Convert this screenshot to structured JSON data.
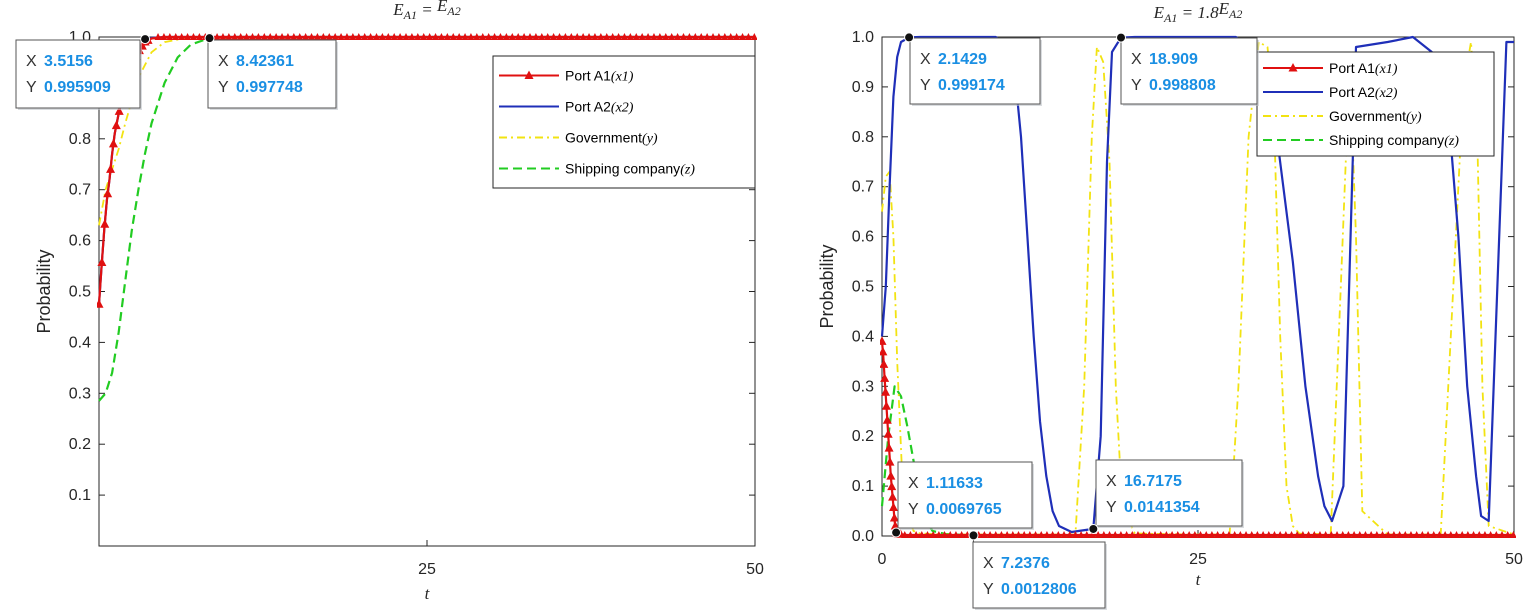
{
  "chart_data": [
    {
      "type": "line",
      "title": "E_A1 = E_A2",
      "title_parts": {
        "lhs": "E",
        "lhs_sub": "A1",
        "eq": " = ",
        "rhs": "E",
        "rhs_sub": "A2"
      },
      "xlabel": "t",
      "ylabel": "Probability",
      "xlim": [
        0,
        50
      ],
      "ylim": [
        0,
        1.0
      ],
      "xticks": [
        25,
        50
      ],
      "xtick_labels": [
        "25",
        "50"
      ],
      "yticks": [
        0.1,
        0.2,
        0.3,
        0.4,
        0.5,
        0.6,
        0.7,
        0.8,
        1.0
      ],
      "ytick_labels": [
        "0.1",
        "0.2",
        "0.3",
        "0.4",
        "0.5",
        "0.6",
        "0.7",
        "0.8",
        "1.0"
      ],
      "legend_position": "top-right",
      "series": [
        {
          "name": "Port A1",
          "name_var": "x1",
          "color": "#e01010",
          "style": "solid-triangle",
          "x": [
            0,
            0.2,
            0.4,
            0.6,
            0.8,
            1.0,
            1.2,
            1.5,
            2.0,
            2.5,
            3.0,
            3.5,
            4,
            5,
            8,
            12,
            20,
            30,
            40,
            50
          ],
          "y": [
            0.475,
            0.55,
            0.62,
            0.68,
            0.72,
            0.77,
            0.81,
            0.85,
            0.9,
            0.94,
            0.97,
            0.99,
            0.997,
            1.0,
            1.0,
            1.0,
            1.0,
            1.0,
            1.0,
            1.0
          ]
        },
        {
          "name": "Port A2",
          "name_var": "x2",
          "color": "#1f2fb8",
          "style": "solid",
          "x": [
            0,
            0.2,
            0.4,
            0.6,
            0.8,
            1.0,
            1.2,
            1.5,
            2.0,
            2.5,
            3.0,
            3.5156,
            4,
            5,
            8,
            20,
            50
          ],
          "y": [
            0.475,
            0.55,
            0.62,
            0.68,
            0.72,
            0.77,
            0.81,
            0.85,
            0.9,
            0.94,
            0.97,
            0.995909,
            0.998,
            1.0,
            1.0,
            1.0,
            1.0
          ]
        },
        {
          "name": "Government",
          "name_var": "y",
          "color": "#f2e311",
          "style": "dashdot",
          "x": [
            0,
            0.5,
            1.0,
            1.5,
            2.0,
            3.0,
            4.0,
            5.0,
            7,
            10,
            50
          ],
          "y": [
            0.63,
            0.7,
            0.74,
            0.78,
            0.83,
            0.92,
            0.97,
            0.99,
            1.0,
            1.0,
            1.0
          ]
        },
        {
          "name": "Shipping company",
          "name_var": "z",
          "color": "#22cc22",
          "style": "dashed",
          "x": [
            0,
            0.5,
            1.0,
            1.5,
            2.0,
            2.5,
            3.0,
            3.5,
            4.0,
            5.0,
            6.0,
            7.0,
            8.42361,
            10,
            15,
            20,
            30,
            50
          ],
          "y": [
            0.285,
            0.3,
            0.34,
            0.42,
            0.52,
            0.62,
            0.7,
            0.77,
            0.83,
            0.91,
            0.96,
            0.985,
            0.997748,
            1.0,
            1.0,
            1.0,
            1.0,
            1.0
          ]
        }
      ],
      "datatips": [
        {
          "x": 3.5156,
          "y": 0.995909,
          "x_label": "X",
          "y_label": "Y",
          "x_text": "3.5156",
          "y_text": "0.995909",
          "box_side": "left"
        },
        {
          "x": 8.42361,
          "y": 0.997748,
          "x_label": "X",
          "y_label": "Y",
          "x_text": "8.42361",
          "y_text": "0.997748",
          "box_side": "right"
        }
      ]
    },
    {
      "type": "line",
      "title": "E_A1 = 1.8E_A2",
      "title_parts": {
        "lhs": "E",
        "lhs_sub": "A1",
        "eq": " = 1.8",
        "rhs": "E",
        "rhs_sub": "A2"
      },
      "xlabel": "t",
      "ylabel": "Probability",
      "xlim": [
        0,
        50
      ],
      "ylim": [
        0,
        1.0
      ],
      "xticks": [
        0,
        25,
        50
      ],
      "xtick_labels": [
        "0",
        "25",
        "50"
      ],
      "yticks": [
        0.0,
        0.1,
        0.2,
        0.3,
        0.4,
        0.5,
        0.6,
        0.7,
        0.8,
        0.9,
        1.0
      ],
      "ytick_labels": [
        "0.0",
        "0.1",
        "0.2",
        "0.3",
        "0.4",
        "0.5",
        "0.6",
        "0.7",
        "0.8",
        "0.9",
        "1.0"
      ],
      "legend_position": "top-right",
      "series": [
        {
          "name": "Port A1",
          "name_var": "x1",
          "color": "#e01010",
          "style": "solid-triangle",
          "x": [
            0,
            0.1,
            0.2,
            0.3,
            0.4,
            0.5,
            0.6,
            0.7,
            0.8,
            0.9,
            1.0,
            1.11633,
            1.3,
            1.6,
            2.0,
            3,
            5,
            10,
            20,
            30,
            40,
            50
          ],
          "y": [
            0.39,
            0.36,
            0.32,
            0.28,
            0.24,
            0.2,
            0.16,
            0.12,
            0.09,
            0.06,
            0.03,
            0.0069765,
            0.004,
            0.003,
            0.002,
            0.002,
            0.002,
            0.002,
            0.002,
            0.002,
            0.002,
            0.002
          ]
        },
        {
          "name": "Port A2",
          "name_var": "x2",
          "color": "#1f2fb8",
          "style": "solid",
          "x": [
            0,
            0.3,
            0.6,
            0.9,
            1.2,
            1.5,
            2.1429,
            3,
            6,
            9,
            10,
            10.5,
            11,
            11.5,
            12,
            12.5,
            13,
            13.5,
            14,
            15,
            16.7175,
            17.3,
            17.8,
            18.2,
            18.909,
            20,
            25,
            28,
            29.5,
            31,
            32.5,
            33.5,
            34.5,
            35,
            35.6,
            36.5,
            37.5,
            40,
            42,
            43.5,
            44.8,
            45.6,
            46.3,
            47,
            47.4,
            48,
            49.4,
            50
          ],
          "y": [
            0.4,
            0.5,
            0.7,
            0.88,
            0.96,
            0.99,
            0.999174,
            1.0,
            1.0,
            1.0,
            0.98,
            0.93,
            0.8,
            0.6,
            0.4,
            0.23,
            0.12,
            0.05,
            0.02,
            0.008,
            0.0141354,
            0.2,
            0.75,
            0.97,
            0.998808,
            1.0,
            1.0,
            1.0,
            0.97,
            0.85,
            0.55,
            0.3,
            0.12,
            0.06,
            0.03,
            0.1,
            0.98,
            0.99,
            1.0,
            0.97,
            0.85,
            0.6,
            0.3,
            0.12,
            0.04,
            0.03,
            0.99,
            0.99
          ]
        },
        {
          "name": "Government",
          "name_var": "y",
          "color": "#f2e311",
          "style": "dashdot",
          "x": [
            0,
            0.3,
            0.6,
            0.9,
            1.2,
            1.6,
            2.0,
            2.5,
            3,
            5,
            10,
            15.3,
            16,
            16.6,
            17,
            17.5,
            18,
            18.5,
            19,
            20,
            24,
            27.5,
            28.2,
            29,
            29.8,
            30.5,
            31,
            31.5,
            32,
            32.5,
            33,
            35.5,
            36.3,
            37,
            37.5,
            38,
            40,
            44.2,
            45,
            46,
            46.6,
            47.1,
            47.5,
            48,
            50
          ],
          "y": [
            0.65,
            0.72,
            0.73,
            0.6,
            0.35,
            0.12,
            0.04,
            0.01,
            0.005,
            0.003,
            0.003,
            0.003,
            0.3,
            0.8,
            0.98,
            0.95,
            0.75,
            0.3,
            0.06,
            0.005,
            0.003,
            0.003,
            0.3,
            0.8,
            0.99,
            0.98,
            0.85,
            0.4,
            0.1,
            0.02,
            0.005,
            0.003,
            0.5,
            0.95,
            0.6,
            0.05,
            0.003,
            0.003,
            0.4,
            0.9,
            0.99,
            0.8,
            0.3,
            0.02,
            0.003
          ]
        },
        {
          "name": "Shipping company",
          "name_var": "z",
          "color": "#22cc22",
          "style": "dashed",
          "x": [
            0,
            0.5,
            1.0,
            1.5,
            2.0,
            2.5,
            3.0,
            3.5,
            4.0,
            5,
            7.2376,
            10,
            20,
            30,
            40,
            50
          ],
          "y": [
            0.06,
            0.2,
            0.3,
            0.28,
            0.22,
            0.15,
            0.08,
            0.03,
            0.01,
            0.004,
            0.0012806,
            0.001,
            0.001,
            0.001,
            0.001,
            0.001
          ]
        }
      ],
      "datatips": [
        {
          "x": 2.1429,
          "y": 0.999174,
          "x_label": "X",
          "y_label": "Y",
          "x_text": "2.1429",
          "y_text": "0.999174",
          "box_side": "right-below"
        },
        {
          "x": 18.909,
          "y": 0.998808,
          "x_label": "X",
          "y_label": "Y",
          "x_text": "18.909",
          "y_text": "0.998808",
          "box_side": "right-below"
        },
        {
          "x": 1.11633,
          "y": 0.0069765,
          "x_label": "X",
          "y_label": "Y",
          "x_text": "1.11633",
          "y_text": "0.0069765",
          "box_side": "right-above"
        },
        {
          "x": 16.7175,
          "y": 0.0141354,
          "x_label": "X",
          "y_label": "Y",
          "x_text": "16.7175",
          "y_text": "0.0141354",
          "box_side": "right-above"
        },
        {
          "x": 7.2376,
          "y": 0.0012806,
          "x_label": "X",
          "y_label": "Y",
          "x_text": "7.2376",
          "y_text": "0.0012806",
          "box_side": "right-below"
        }
      ]
    }
  ]
}
